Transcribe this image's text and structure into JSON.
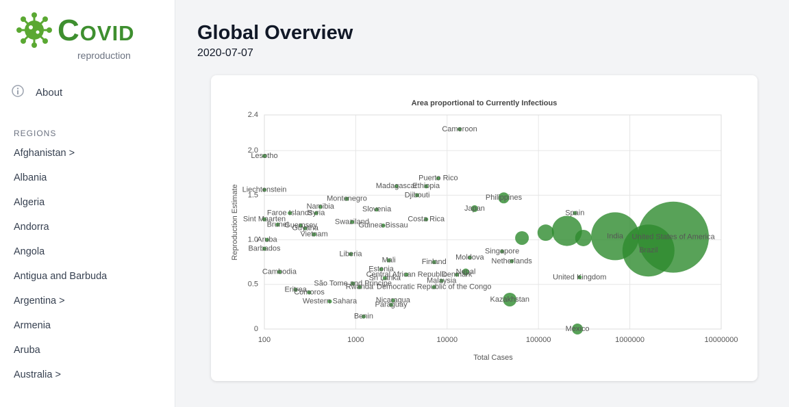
{
  "sidebar": {
    "logo_title": "Covid",
    "logo_subtitle": "reproduction",
    "about": "About",
    "regions_heading": "REGIONS",
    "regions": [
      "Afghanistan >",
      "Albania",
      "Algeria",
      "Andorra",
      "Angola",
      "Antigua and Barbuda",
      "Argentina >",
      "Armenia",
      "Aruba",
      "Australia >"
    ]
  },
  "header": {
    "title": "Global Overview",
    "date": "2020-07-07"
  },
  "chart_data": {
    "type": "scatter",
    "title": "Area proportional to Currently Infectious",
    "x_label": "Total Cases",
    "y_label": "Reproduction Estimate",
    "xscale": "log",
    "xlim": [
      100,
      10000000
    ],
    "xticks": [
      100,
      1000,
      10000,
      100000,
      1000000,
      10000000
    ],
    "ylim": [
      0,
      2.4
    ],
    "yticks": [
      0,
      0.5,
      {
        "value": 1,
        "label": "1.0"
      },
      1.5,
      {
        "value": 2,
        "label": "2.0"
      },
      2.4
    ],
    "grid": true,
    "color": "#2e8b2e",
    "labels": [
      "Cameroon",
      "Lesotho",
      "Puerto Rico",
      "Madagascar",
      "Ethiopia",
      "Djibouti",
      "Philippines",
      "Liechtenstein",
      "Montenegro",
      "Namibia",
      "Japan",
      "Spain",
      "Slovenia",
      "Faroe Islands",
      "Sint Maarten",
      "Brunei",
      "Guernsey",
      "Guyana",
      "Syria",
      "Swaziland",
      "Guinea-Bissau",
      "Costa Rica",
      "Aruba",
      "Vietnam",
      "Barbados",
      "Liberia",
      "Mali",
      "Estonia",
      "Cambodia",
      "Central African Republic",
      "Denmark",
      "Nepal",
      "Finland",
      "Moldova",
      "Netherlands",
      "Singapore",
      "Sri Lanka",
      "Malaysia",
      "São Tome and Principe",
      "Rwanda",
      "Democratic Republic of the Congo",
      "Eritrea",
      "Comoros",
      "Western Sahara",
      "Nicaragua",
      "Paraguay",
      "Benin",
      "Kazakhstan",
      "Mexico",
      "United Kingdom",
      "India",
      "Brazil",
      "United States of America",
      null,
      null,
      null,
      null
    ],
    "x": [
      13700,
      100,
      8000,
      2800,
      5900,
      4700,
      41700,
      100,
      800,
      410,
      20000,
      250000,
      1700,
      190,
      100,
      140,
      250,
      280,
      370,
      910,
      2000,
      5900,
      107,
      350,
      100,
      880,
      2300,
      1900,
      146,
      3600,
      12800,
      16000,
      7200,
      17700,
      51000,
      40000,
      2080,
      8700,
      930,
      1100,
      7200,
      220,
      310,
      520,
      2560,
      2440,
      1220,
      48500,
      267000,
      282000,
      690000,
      1600000,
      2990000,
      205000,
      120000,
      310000,
      66000
    ],
    "values": [
      2.24,
      1.94,
      1.69,
      1.6,
      1.6,
      1.5,
      1.47,
      1.56,
      1.46,
      1.37,
      1.35,
      1.3,
      1.34,
      1.3,
      1.23,
      1.17,
      1.16,
      1.13,
      1.3,
      1.2,
      1.16,
      1.23,
      1.0,
      1.06,
      0.9,
      0.84,
      0.77,
      0.67,
      0.64,
      0.61,
      0.61,
      0.64,
      0.75,
      0.8,
      0.76,
      0.87,
      0.57,
      0.54,
      0.51,
      0.47,
      0.47,
      0.44,
      0.41,
      0.31,
      0.32,
      0.27,
      0.14,
      0.33,
      0.0,
      0.58,
      1.04,
      0.88,
      1.03,
      1.1,
      1.08,
      1.02,
      1.02
    ],
    "sizes": [
      3600,
      3600,
      3600,
      3600,
      3600,
      3600,
      25600,
      3600,
      3600,
      3600,
      10000,
      3600,
      3600,
      3600,
      3600,
      3600,
      3600,
      3600,
      3600,
      3600,
      3600,
      3600,
      3600,
      3600,
      3600,
      3600,
      3600,
      3600,
      3600,
      3600,
      3600,
      10000,
      3600,
      3600,
      3600,
      3600,
      3600,
      3600,
      3600,
      3600,
      3600,
      3600,
      3600,
      3600,
      3600,
      3600,
      3600,
      40000,
      25600,
      3600,
      490000,
      578000,
      1080000,
      194000,
      57600,
      57600,
      40000
    ]
  }
}
